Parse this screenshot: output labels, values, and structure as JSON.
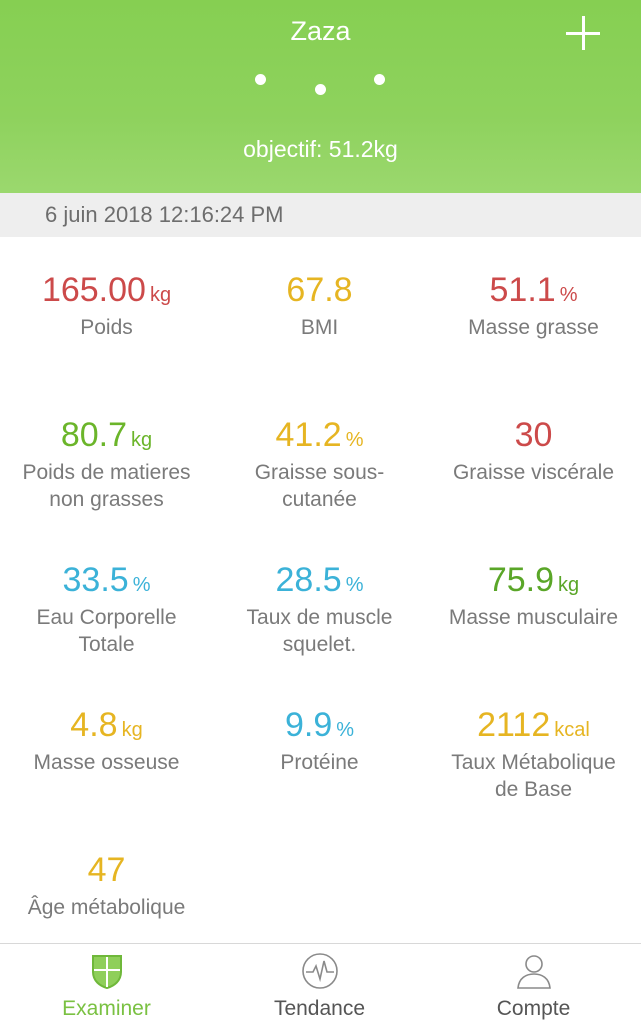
{
  "header": {
    "title": "Zaza",
    "goal": "objectif: 51.2kg",
    "add_icon": "plus-icon",
    "background_color": "#8ed25d"
  },
  "date": "6 juin 2018 12:16:24 PM",
  "metrics": [
    {
      "value": "165.00",
      "unit": "kg",
      "label": "Poids",
      "color": "#cc4a4a"
    },
    {
      "value": "67.8",
      "unit": "",
      "label": "BMI",
      "color": "#e6b522"
    },
    {
      "value": "51.1",
      "unit": "%",
      "label": "Masse grasse",
      "color": "#cc4a4a"
    },
    {
      "value": "80.7",
      "unit": "kg",
      "label_lines": [
        "Poids de matieres",
        "non grasses"
      ],
      "color": "#6bb52a"
    },
    {
      "value": "41.2",
      "unit": "%",
      "label_lines": [
        "Graisse sous-",
        "cutanée"
      ],
      "color": "#e6b522"
    },
    {
      "value": "30",
      "unit": "",
      "label": "Graisse viscérale",
      "color": "#cc4a4a"
    },
    {
      "value": "33.5",
      "unit": "%",
      "label_lines": [
        "Eau Corporelle",
        "Totale"
      ],
      "color": "#3bb2d8"
    },
    {
      "value": "28.5",
      "unit": "%",
      "label_lines": [
        "Taux de muscle",
        "squelet."
      ],
      "color": "#3bb2d8"
    },
    {
      "value": "75.9",
      "unit": "kg",
      "label": "Masse musculaire",
      "color": "#5aa628"
    },
    {
      "value": "4.8",
      "unit": "kg",
      "label": "Masse osseuse",
      "color": "#e6b522"
    },
    {
      "value": "9.9",
      "unit": "%",
      "label": "Protéine",
      "color": "#3bb2d8"
    },
    {
      "value": "2112",
      "unit": "kcal",
      "label_lines": [
        "Taux Métabolique",
        "de Base"
      ],
      "color": "#e6b522"
    },
    {
      "value": "47",
      "unit": "",
      "label": "Âge métabolique",
      "color": "#e6b522"
    }
  ],
  "tabs": [
    {
      "label": "Examiner",
      "icon": "shield-icon",
      "active": true
    },
    {
      "label": "Tendance",
      "icon": "pulse-icon",
      "active": false
    },
    {
      "label": "Compte",
      "icon": "user-icon",
      "active": false
    }
  ]
}
